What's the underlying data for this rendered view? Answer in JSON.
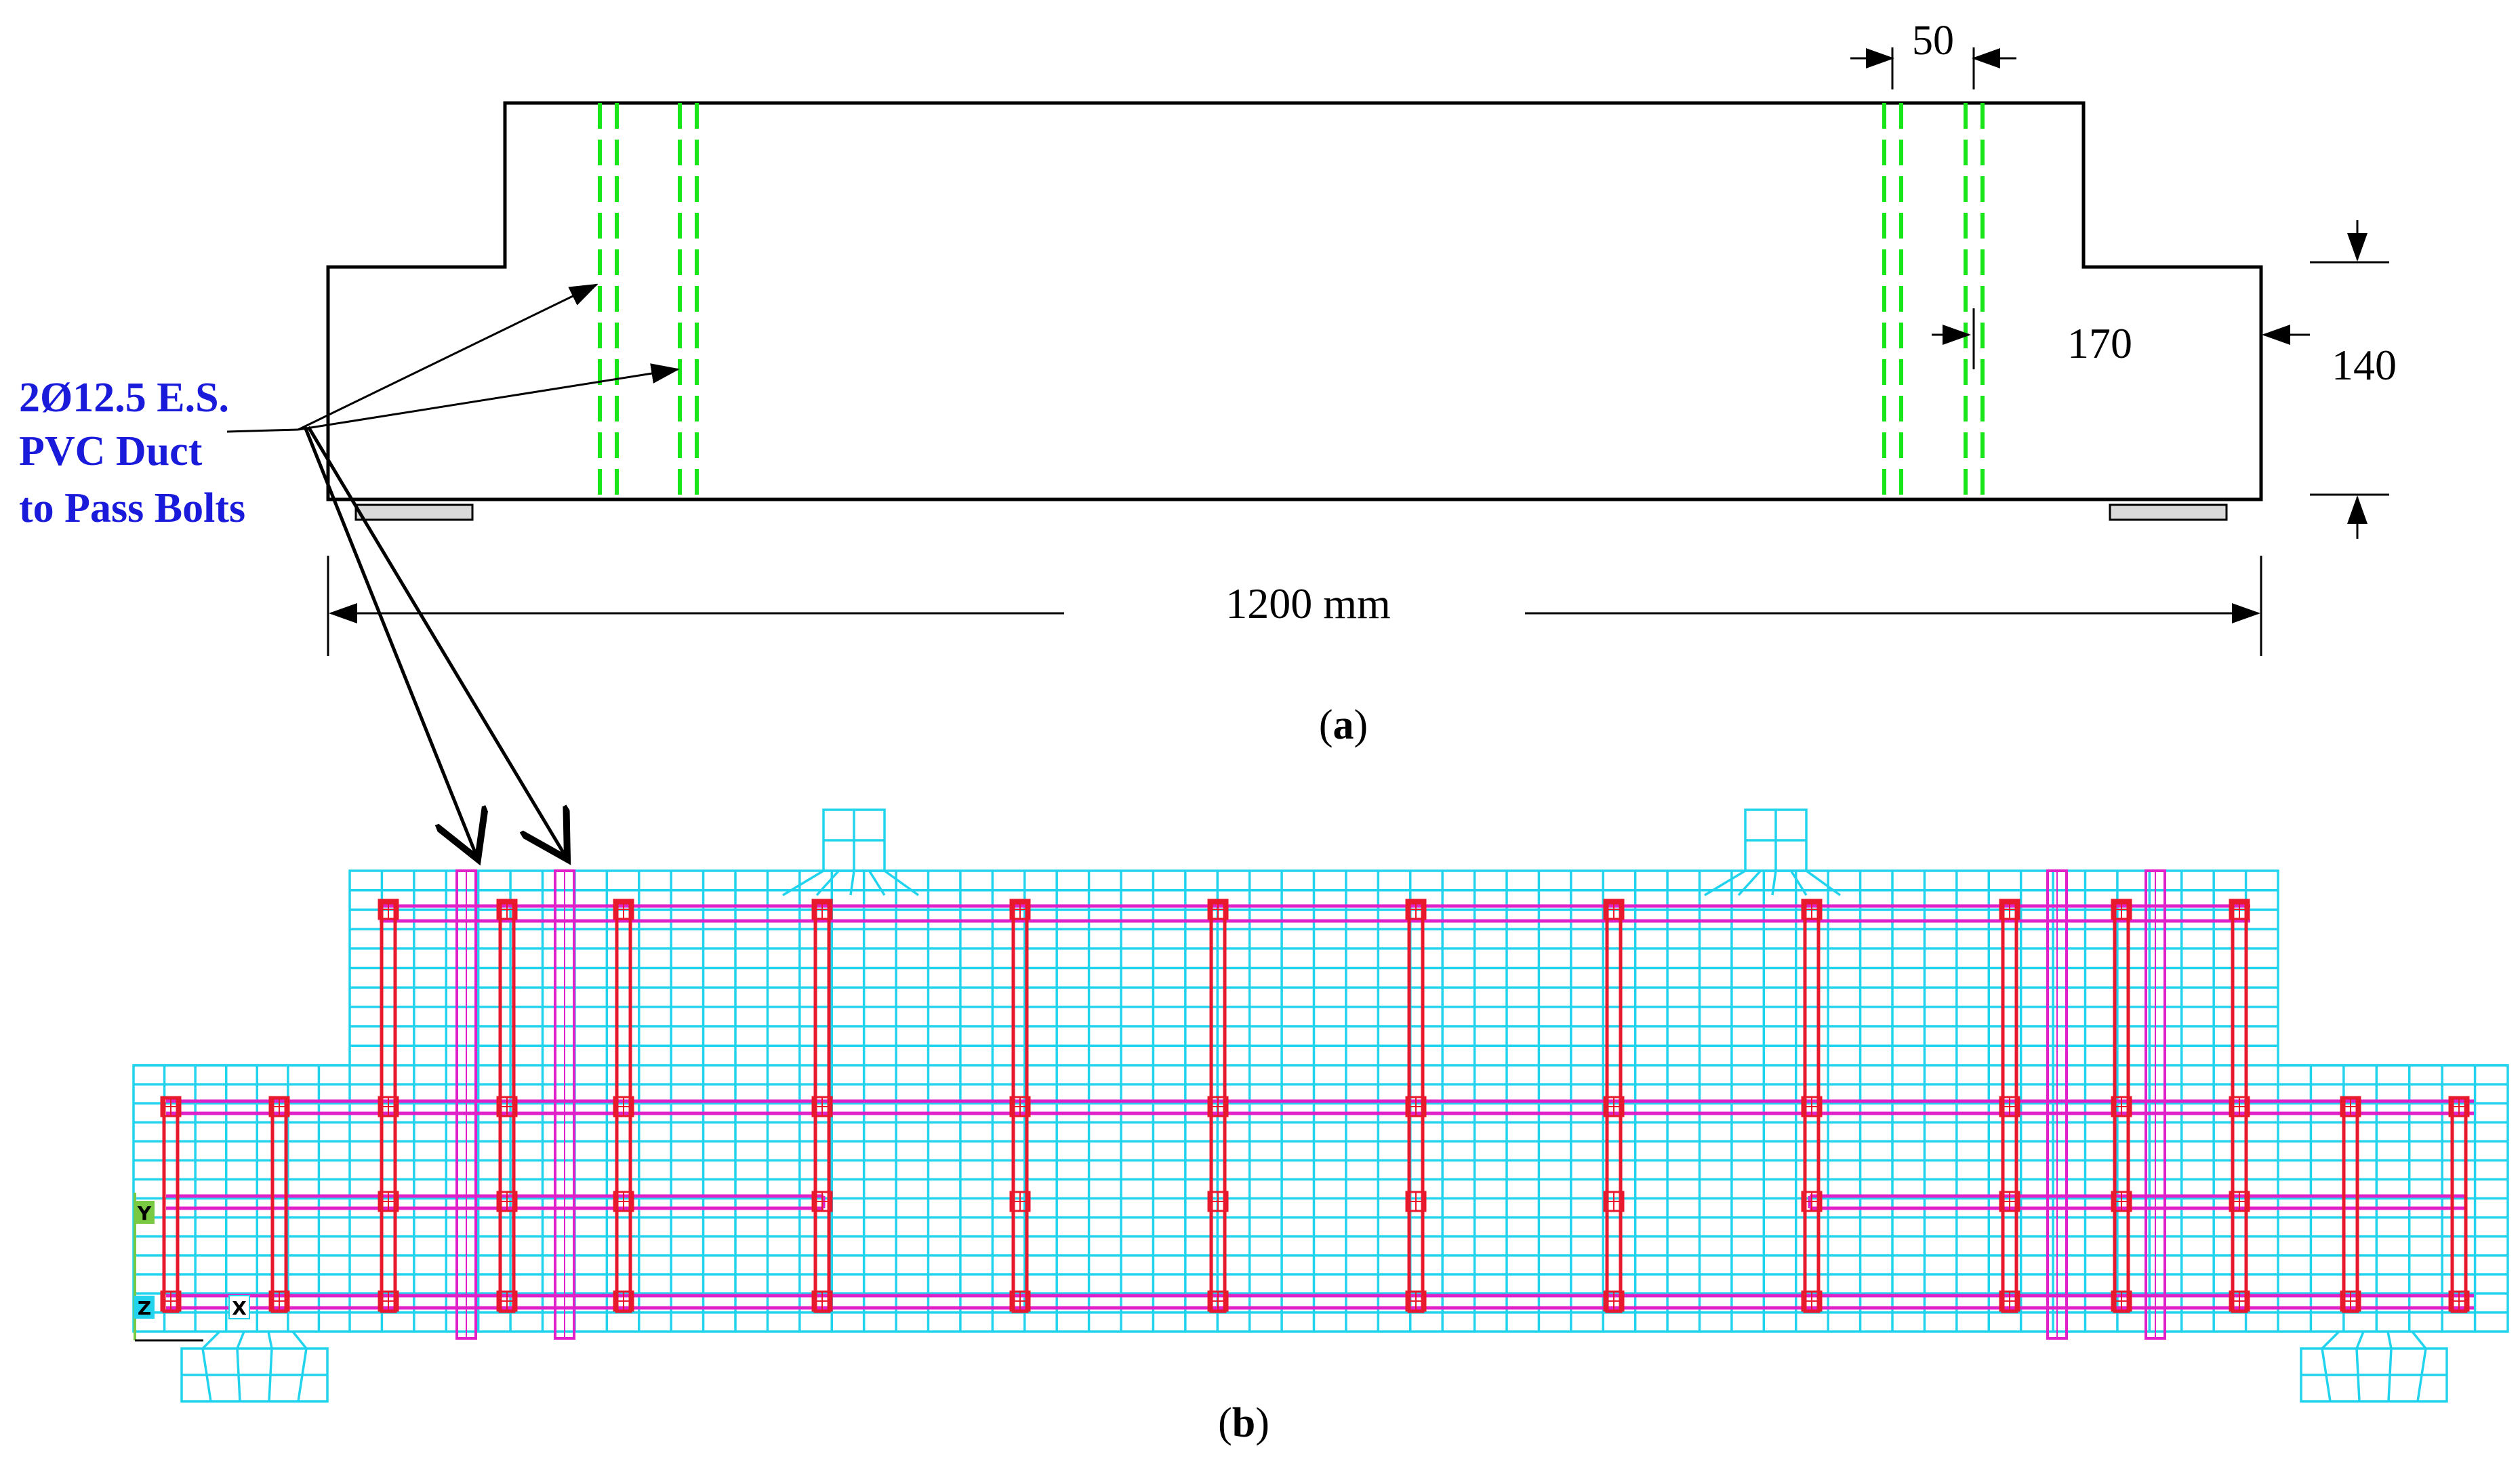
{
  "panel_a": {
    "dims": {
      "spacing": "50",
      "depth_middle": "170",
      "depth_end": "140",
      "length": "1200 mm"
    },
    "note_lines": [
      "2Ø12.5 E.S.",
      "PVC Duct",
      "to Pass Bolts"
    ],
    "caption_letter": "a"
  },
  "panel_b": {
    "caption_letter": "b",
    "axis_labels": {
      "y": "Y",
      "z": "Z",
      "x": "X"
    }
  },
  "colors": {
    "outline": "#000000",
    "duct_green": "#19e619",
    "note_blue": "#1a1adb",
    "mesh_cyan": "#22d3ee",
    "rebar_red": "#e8192c",
    "bolt_magenta": "#e020c8",
    "axis_green": "#7ac943"
  }
}
